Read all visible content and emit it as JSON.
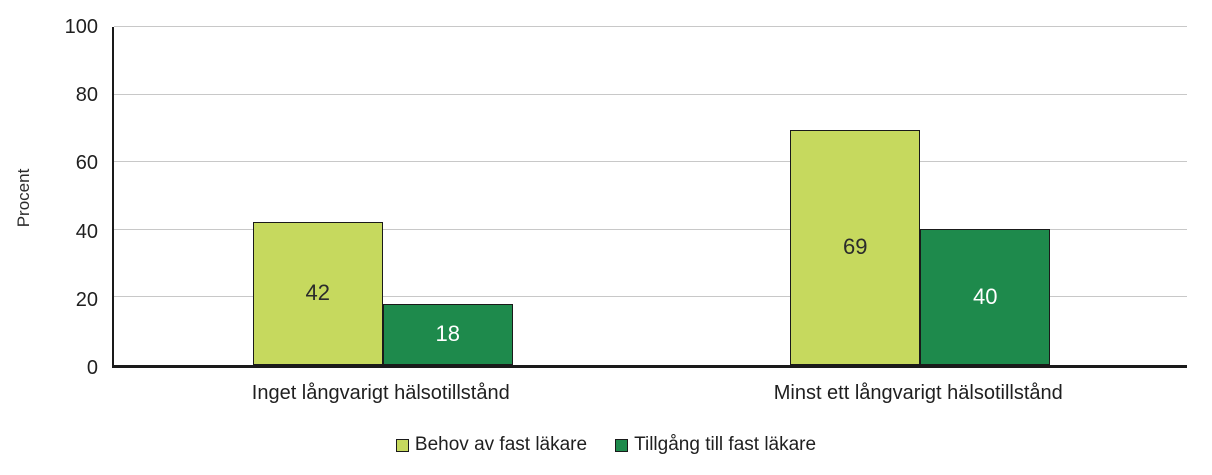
{
  "chart_data": {
    "type": "bar",
    "title": "",
    "xlabel": "",
    "ylabel": "Procent",
    "ylim": [
      0,
      100
    ],
    "yticks": [
      0,
      20,
      40,
      60,
      80,
      100
    ],
    "grid": true,
    "legend_position": "bottom",
    "categories": [
      "Inget långvarigt hälsotillstånd",
      "Minst ett långvarigt hälsotillstånd"
    ],
    "series": [
      {
        "name": "Behov av fast läkare",
        "color": "#C6D95E",
        "border_color": "#1A1A1A",
        "label_color": "#2B2B2B",
        "values": [
          42,
          69
        ]
      },
      {
        "name": "Tillgång till fast läkare",
        "color": "#1E8A4C",
        "border_color": "#1A1A1A",
        "label_color": "#FFFFFF",
        "values": [
          18,
          40
        ]
      }
    ]
  },
  "colors": {
    "background": "#FFFFFF",
    "gridline": "#C8C8C8",
    "axis": "#1A1A1A",
    "text": "#2B2B2B"
  }
}
